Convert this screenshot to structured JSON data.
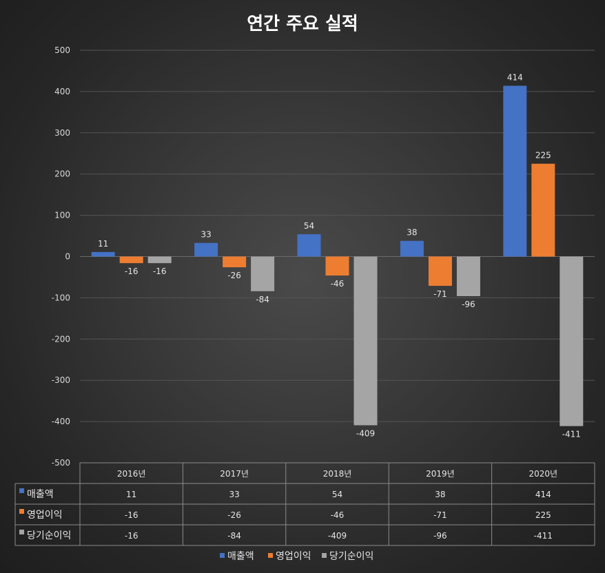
{
  "chart_data": {
    "type": "bar",
    "title": "연간 주요 실적",
    "categories": [
      "2016년",
      "2017년",
      "2018년",
      "2019년",
      "2020년"
    ],
    "series": [
      {
        "name": "매출액",
        "values": [
          11,
          33,
          54,
          38,
          414
        ],
        "color": "#4472c4"
      },
      {
        "name": "영업이익",
        "values": [
          -16,
          -26,
          -46,
          -71,
          225
        ],
        "color": "#ed7d31"
      },
      {
        "name": "당기순이익",
        "values": [
          -16,
          -84,
          -409,
          -96,
          -411
        ],
        "color": "#a5a5a5"
      }
    ],
    "y_ticks": [
      "500",
      "400",
      "300",
      "200",
      "100",
      "0",
      "-100",
      "-200",
      "-300",
      "-400",
      "-500"
    ],
    "ylim": [
      -500,
      500
    ],
    "grid": true,
    "legend_position": "bottom",
    "data_table": true
  }
}
